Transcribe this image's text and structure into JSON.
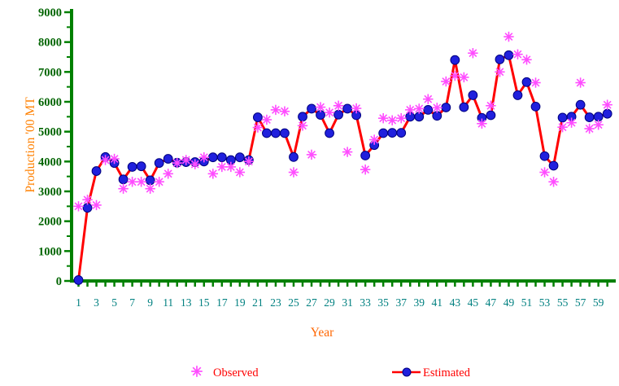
{
  "chart_data": {
    "type": "line",
    "title": "",
    "xlabel": "Year",
    "ylabel": "Production '00 MT",
    "ylim": [
      0,
      9000
    ],
    "y_tick_step": 1000,
    "y_minor_tick_step": 500,
    "x_range": [
      1,
      60
    ],
    "x_tick_every_year": true,
    "grid": "off",
    "legend_position": "bottom-center",
    "y_tick_labels": [
      "0",
      "1000",
      "2000",
      "3000",
      "4000",
      "5000",
      "6000",
      "7000",
      "8000",
      "9000"
    ],
    "x_tick_labels": [
      "1",
      "3",
      "5",
      "7",
      "9",
      "11",
      "13",
      "15",
      "17",
      "19",
      "21",
      "23",
      "25",
      "27",
      "29",
      "31",
      "33",
      "35",
      "37",
      "39",
      "41",
      "43",
      "45",
      "47",
      "49",
      "51",
      "53",
      "55",
      "57",
      "59"
    ],
    "series": [
      {
        "name": "Observed",
        "marker": "star",
        "line": "none",
        "color": "#FF4DFF",
        "values": [
          2500,
          2720,
          2540,
          4050,
          4090,
          3090,
          3320,
          3320,
          3090,
          3320,
          3590,
          3950,
          4050,
          3910,
          4140,
          3590,
          3820,
          3820,
          3640,
          4000,
          5140,
          5400,
          5730,
          5680,
          3640,
          5200,
          4230,
          5820,
          5640,
          5870,
          4320,
          5780,
          3730,
          4730,
          5450,
          5380,
          5450,
          5730,
          5770,
          6090,
          5800,
          6680,
          6870,
          6820,
          7630,
          5270,
          5870,
          7000,
          8180,
          7590,
          7410,
          6640,
          3640,
          3320,
          5150,
          5300,
          6640,
          5100,
          5230,
          5900
        ]
      },
      {
        "name": "Estimated",
        "marker": "circle",
        "line": "solid",
        "color": "#FF0000",
        "marker_fill": "#2020DD",
        "marker_edge": "#000080",
        "values": [
          30,
          2450,
          3680,
          4150,
          3950,
          3400,
          3820,
          3840,
          3370,
          3950,
          4090,
          3960,
          3980,
          3980,
          4000,
          4140,
          4140,
          4050,
          4140,
          4050,
          5480,
          4950,
          4950,
          4950,
          4150,
          5500,
          5770,
          5560,
          4950,
          5570,
          5770,
          5550,
          4200,
          4550,
          4950,
          4960,
          4960,
          5500,
          5500,
          5730,
          5530,
          5810,
          7400,
          5820,
          6220,
          5460,
          5550,
          7420,
          7560,
          6220,
          6660,
          5840,
          4180,
          3860,
          5470,
          5500,
          5900,
          5480,
          5500,
          5600
        ]
      }
    ],
    "colors": {
      "axis": "#008000",
      "y_tick_label": "#006400",
      "x_tick_label": "#008080",
      "y_title": "#FF8000",
      "x_title": "#FF6600",
      "legend_text": "#FF0000",
      "background": "#FFFFFF"
    }
  }
}
